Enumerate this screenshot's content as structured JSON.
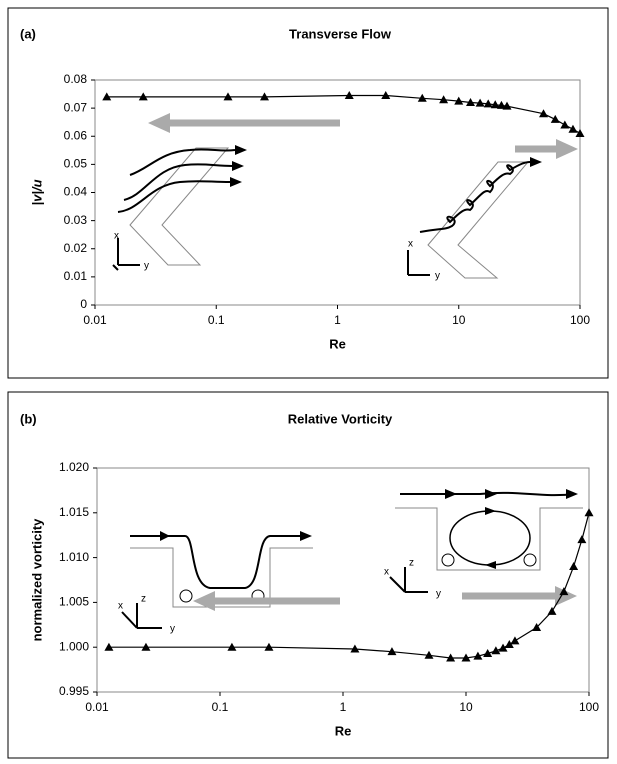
{
  "chart_data": [
    {
      "type": "line",
      "panel_label": "(a)",
      "title": "Transverse Flow",
      "xlabel": "Re",
      "ylabel": "|v|/u",
      "xscale": "log",
      "xlim": [
        0.01,
        100
      ],
      "xticks": [
        0.01,
        0.1,
        1,
        10,
        100
      ],
      "ylim": [
        0,
        0.08
      ],
      "yticks": [
        0,
        0.01,
        0.02,
        0.03,
        0.04,
        0.05,
        0.06,
        0.07,
        0.08
      ],
      "grid": false,
      "marker": "triangle",
      "color": "#000000",
      "x": [
        0.0125,
        0.025,
        0.125,
        0.25,
        1.25,
        2.5,
        5,
        7.5,
        10,
        12.5,
        15,
        17.5,
        20,
        22.5,
        25,
        50,
        62.5,
        75,
        87.5,
        100
      ],
      "values": [
        0.074,
        0.074,
        0.074,
        0.074,
        0.0745,
        0.0745,
        0.0735,
        0.073,
        0.0725,
        0.072,
        0.0718,
        0.0715,
        0.0712,
        0.071,
        0.0707,
        0.068,
        0.066,
        0.064,
        0.0625,
        0.061
      ]
    },
    {
      "type": "line",
      "panel_label": "(b)",
      "title": "Relative Vorticity",
      "xlabel": "Re",
      "ylabel": "normalized vorticity",
      "xscale": "log",
      "xlim": [
        0.01,
        100
      ],
      "xticks": [
        0.01,
        0.1,
        1,
        10,
        100
      ],
      "ylim": [
        0.995,
        1.02
      ],
      "yticks": [
        0.995,
        {
          "value": 1,
          "label": "1.000"
        },
        1.005,
        {
          "value": 1.01,
          "label": "1.010"
        },
        1.015,
        {
          "value": 1.02,
          "label": "1.020"
        }
      ],
      "grid": false,
      "marker": "triangle",
      "color": "#000000",
      "x": [
        0.0125,
        0.025,
        0.125,
        0.25,
        1.25,
        2.5,
        5,
        7.5,
        10,
        12.5,
        15,
        17.5,
        20,
        22.5,
        25,
        37.5,
        50,
        62.5,
        75,
        87.5,
        100
      ],
      "values": [
        1.0,
        1.0,
        1.0,
        1.0,
        0.9998,
        0.9995,
        0.9991,
        0.9988,
        0.9988,
        0.999,
        0.9993,
        0.9996,
        0.9999,
        1.0003,
        1.0007,
        1.0022,
        1.004,
        1.0062,
        1.009,
        1.012,
        1.015
      ]
    }
  ]
}
